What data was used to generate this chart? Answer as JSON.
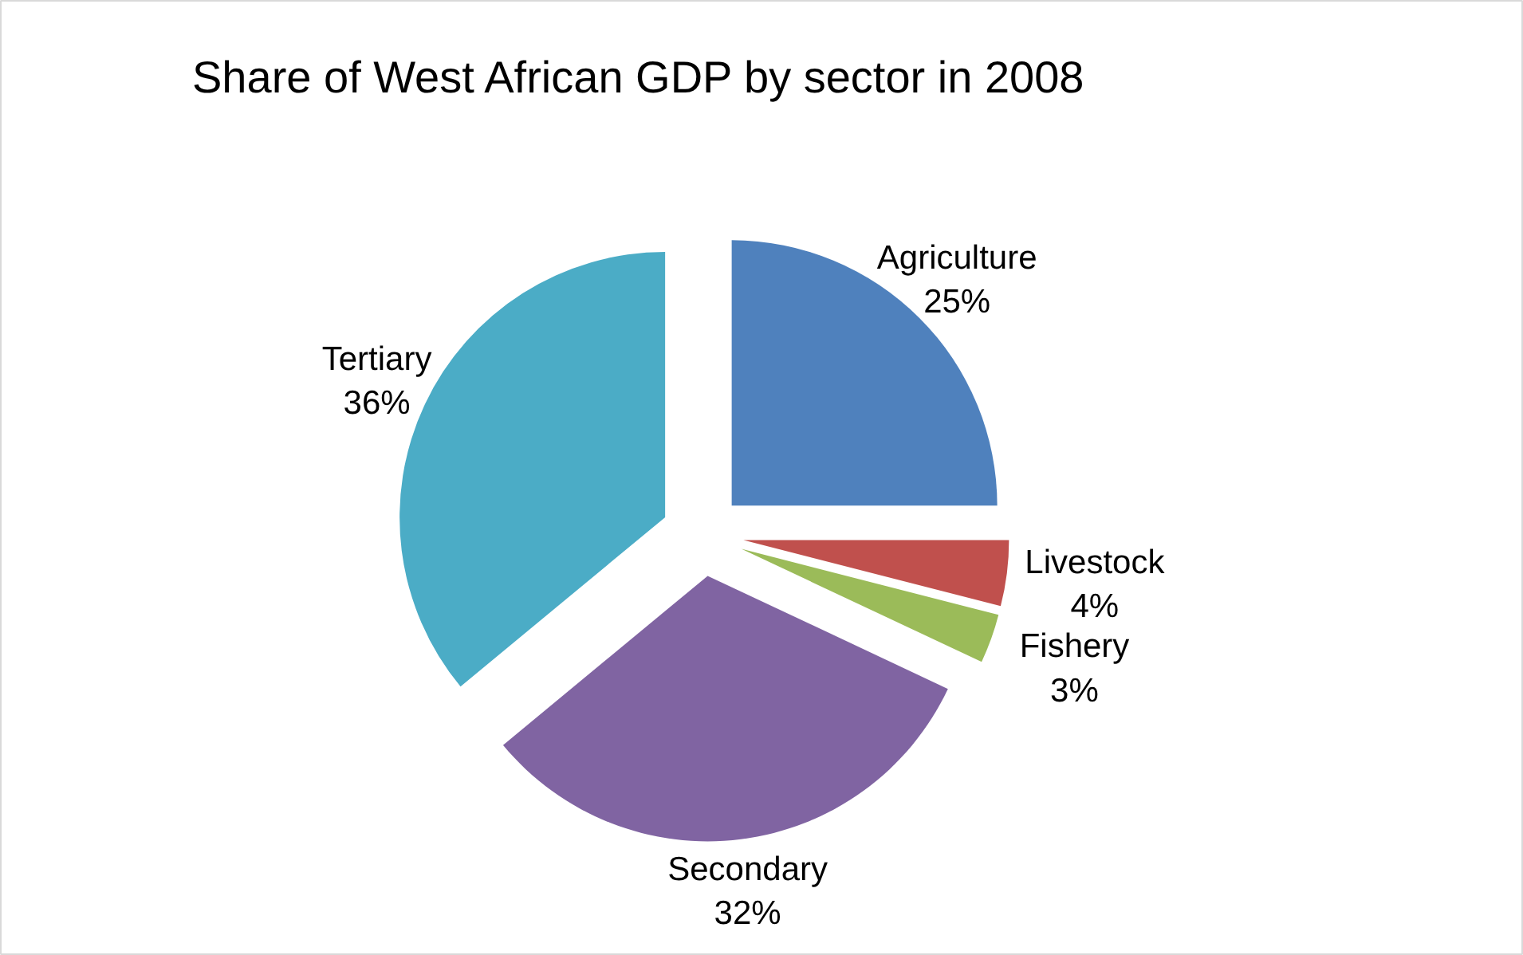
{
  "chart_data": {
    "type": "pie",
    "title": "Share of West African GDP by sector in 2008",
    "categories": [
      "Agriculture",
      "Livestock",
      "Fishery",
      "Secondary",
      "Tertiary"
    ],
    "values": [
      25,
      4,
      3,
      32,
      36
    ],
    "value_labels": [
      "25%",
      "4%",
      "3%",
      "32%",
      "36%"
    ],
    "colors": [
      "#4f81bd",
      "#c0504d",
      "#9bbb59",
      "#8064a2",
      "#4bacc6"
    ]
  }
}
